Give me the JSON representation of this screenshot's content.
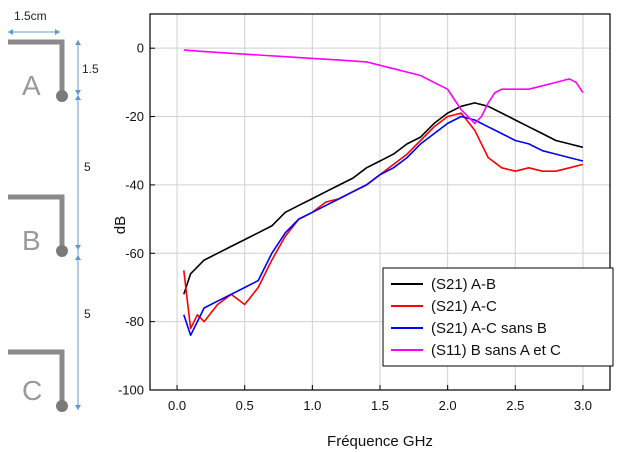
{
  "chart_data": {
    "type": "line",
    "xlabel": "Fréquence GHz",
    "ylabel": "dB",
    "xlim": [
      -0.2,
      3.2
    ],
    "ylim": [
      -100,
      10
    ],
    "xticks": [
      "0.0",
      "0.5",
      "1.0",
      "1.5",
      "2.0",
      "2.5",
      "3.0"
    ],
    "yticks": [
      "0",
      "-20",
      "-40",
      "-60",
      "-80",
      "-100"
    ],
    "grid": true,
    "legend_position": "bottom-right",
    "series": [
      {
        "name": "(S21) A-B",
        "color": "#000000",
        "x": [
          0.05,
          0.1,
          0.2,
          0.3,
          0.4,
          0.5,
          0.6,
          0.7,
          0.8,
          0.9,
          1.0,
          1.1,
          1.2,
          1.3,
          1.4,
          1.5,
          1.6,
          1.7,
          1.8,
          1.9,
          2.0,
          2.1,
          2.2,
          2.3,
          2.4,
          2.5,
          2.6,
          2.7,
          2.8,
          2.9,
          3.0
        ],
        "y": [
          -72,
          -66,
          -62,
          -60,
          -58,
          -56,
          -54,
          -52,
          -48,
          -46,
          -44,
          -42,
          -40,
          -38,
          -35,
          -33,
          -31,
          -28,
          -26,
          -22,
          -19,
          -17,
          -16,
          -17,
          -19,
          -21,
          -23,
          -25,
          -27,
          -28,
          -29
        ]
      },
      {
        "name": "(S21) A-C",
        "color": "#ff0000",
        "x": [
          0.05,
          0.1,
          0.15,
          0.2,
          0.3,
          0.4,
          0.5,
          0.6,
          0.7,
          0.8,
          0.9,
          1.0,
          1.1,
          1.2,
          1.3,
          1.4,
          1.5,
          1.6,
          1.7,
          1.8,
          1.9,
          2.0,
          2.1,
          2.2,
          2.3,
          2.4,
          2.5,
          2.6,
          2.7,
          2.8,
          2.9,
          3.0
        ],
        "y": [
          -65,
          -82,
          -78,
          -80,
          -75,
          -72,
          -75,
          -70,
          -62,
          -55,
          -50,
          -48,
          -45,
          -44,
          -42,
          -40,
          -37,
          -34,
          -31,
          -27,
          -23,
          -20,
          -19,
          -24,
          -32,
          -35,
          -36,
          -35,
          -36,
          -36,
          -35,
          -34
        ]
      },
      {
        "name": "(S21) A-C sans B",
        "color": "#0000ff",
        "x": [
          0.05,
          0.1,
          0.15,
          0.2,
          0.3,
          0.4,
          0.5,
          0.6,
          0.7,
          0.8,
          0.9,
          1.0,
          1.1,
          1.2,
          1.3,
          1.4,
          1.5,
          1.6,
          1.7,
          1.8,
          1.9,
          2.0,
          2.1,
          2.2,
          2.3,
          2.4,
          2.5,
          2.6,
          2.7,
          2.8,
          2.9,
          3.0
        ],
        "y": [
          -78,
          -84,
          -80,
          -76,
          -74,
          -72,
          -70,
          -68,
          -60,
          -54,
          -50,
          -48,
          -46,
          -44,
          -42,
          -40,
          -37,
          -35,
          -32,
          -28,
          -25,
          -22,
          -20,
          -21,
          -23,
          -25,
          -27,
          -28,
          -30,
          -31,
          -32,
          -33
        ]
      },
      {
        "name": "(S11) B sans A et C",
        "color": "#ff00ff",
        "x": [
          0.05,
          0.2,
          0.4,
          0.6,
          0.8,
          1.0,
          1.2,
          1.4,
          1.5,
          1.6,
          1.7,
          1.8,
          1.9,
          2.0,
          2.05,
          2.1,
          2.2,
          2.25,
          2.3,
          2.35,
          2.4,
          2.5,
          2.6,
          2.7,
          2.8,
          2.9,
          2.95,
          3.0
        ],
        "y": [
          -0.5,
          -1,
          -1.5,
          -2,
          -2.5,
          -3,
          -3.5,
          -4,
          -5,
          -6,
          -7,
          -8,
          -10,
          -12,
          -15,
          -18,
          -22,
          -20,
          -16,
          -13,
          -12,
          -12,
          -12,
          -11,
          -10,
          -9,
          -10,
          -13
        ]
      }
    ]
  },
  "diagram": {
    "width_label": "1.5cm",
    "labels": {
      "a": "A",
      "b": "B",
      "c": "C",
      "spacing_top": "1.5",
      "spacing_ab": "5",
      "spacing_bc": "5"
    }
  }
}
